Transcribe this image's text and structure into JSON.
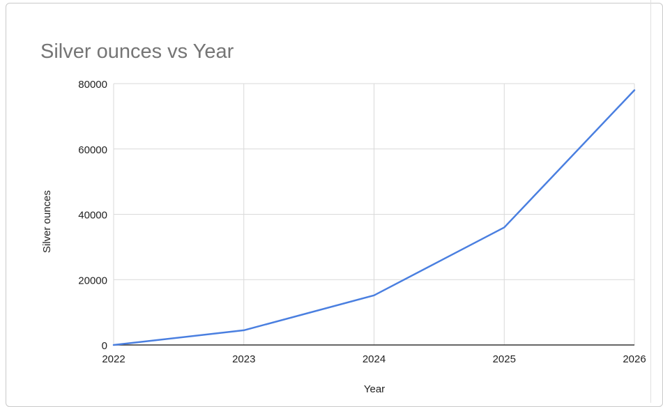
{
  "chart_data": {
    "type": "line",
    "title": "Silver ounces vs Year",
    "xlabel": "Year",
    "ylabel": "Silver ounces",
    "x": [
      2022,
      2023,
      2024,
      2025,
      2026
    ],
    "series": [
      {
        "values": [
          0,
          4500,
          15200,
          36000,
          78000
        ],
        "color": "#4a7fe0"
      }
    ],
    "xlim": [
      2022,
      2026
    ],
    "ylim": [
      0,
      80000
    ],
    "yticks": [
      0,
      20000,
      40000,
      60000,
      80000
    ],
    "xticks": [
      2022,
      2023,
      2024,
      2025,
      2026
    ],
    "grid": true,
    "legend": "none",
    "colors": {
      "line": "#4a7fe0",
      "grid": "#d9d9d9",
      "axis": "#333333",
      "title": "#757575",
      "text": "#222222"
    }
  }
}
